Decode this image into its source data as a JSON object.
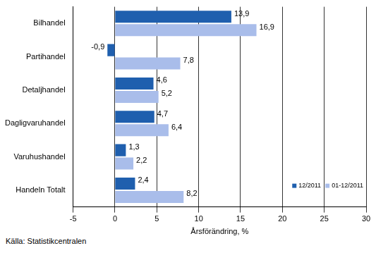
{
  "chart_data": {
    "type": "bar",
    "orientation": "horizontal",
    "categories": [
      "Bilhandel",
      "Partihandel",
      "Detaljhandel",
      "Dagligvaruhandel",
      "Varuhushandel",
      "Handeln Totalt"
    ],
    "series": [
      {
        "name": "12/2011",
        "color": "#1f5fae",
        "values": [
          13.9,
          -0.9,
          4.6,
          4.7,
          1.3,
          2.4
        ],
        "value_labels": [
          "13,9",
          "-0,9",
          "4,6",
          "4,7",
          "1,3",
          "2,4"
        ]
      },
      {
        "name": "01-12/2011",
        "color": "#a9bdea",
        "values": [
          16.9,
          7.8,
          5.2,
          6.4,
          2.2,
          8.2
        ],
        "value_labels": [
          "16,9",
          "7,8",
          "5,2",
          "6,4",
          "2,2",
          "8,2"
        ]
      }
    ],
    "x_label": "Årsförändring, %",
    "xlim": [
      -5,
      30
    ],
    "xticks": [
      -5,
      0,
      5,
      10,
      15,
      20,
      25,
      30
    ],
    "grid": true,
    "legend": "lower right",
    "data_labels": true,
    "source": "Källa: Statistikcentralen"
  }
}
